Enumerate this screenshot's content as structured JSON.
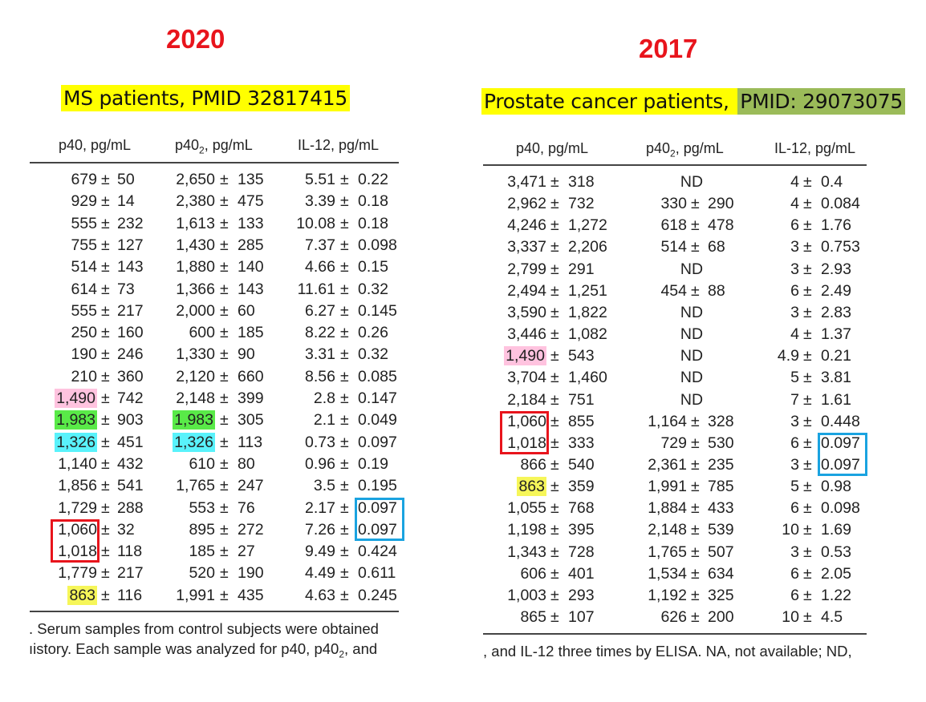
{
  "left": {
    "year": "2020",
    "label": "MS patients, PMID 32817415",
    "headers": {
      "p40": "p40, pg/mL",
      "p402_main": "p40",
      "p402_sub": "2",
      "p402_rest": ", pg/mL",
      "il12": "IL-12, pg/mL"
    },
    "rows": [
      {
        "p40": [
          "679",
          "50"
        ],
        "p402": [
          "2,650",
          "135"
        ],
        "il12": [
          "5.51",
          "0.22"
        ]
      },
      {
        "p40": [
          "929",
          "14"
        ],
        "p402": [
          "2,380",
          "475"
        ],
        "il12": [
          "3.39",
          "0.18"
        ]
      },
      {
        "p40": [
          "555",
          "232"
        ],
        "p402": [
          "1,613",
          "133"
        ],
        "il12": [
          "10.08",
          "0.18"
        ]
      },
      {
        "p40": [
          "755",
          "127"
        ],
        "p402": [
          "1,430",
          "285"
        ],
        "il12": [
          "7.37",
          "0.098"
        ]
      },
      {
        "p40": [
          "514",
          "143"
        ],
        "p402": [
          "1,880",
          "140"
        ],
        "il12": [
          "4.66",
          "0.15"
        ]
      },
      {
        "p40": [
          "614",
          "73"
        ],
        "p402": [
          "1,366",
          "143"
        ],
        "il12": [
          "11.61",
          "0.32"
        ]
      },
      {
        "p40": [
          "555",
          "217"
        ],
        "p402": [
          "2,000",
          "60"
        ],
        "il12": [
          "6.27",
          "0.145"
        ]
      },
      {
        "p40": [
          "250",
          "160"
        ],
        "p402": [
          "600",
          "185"
        ],
        "il12": [
          "8.22",
          "0.26"
        ]
      },
      {
        "p40": [
          "190",
          "246"
        ],
        "p402": [
          "1,330",
          "90"
        ],
        "il12": [
          "3.31",
          "0.32"
        ]
      },
      {
        "p40": [
          "210",
          "360"
        ],
        "p402": [
          "2,120",
          "660"
        ],
        "il12": [
          "8.56",
          "0.085"
        ]
      },
      {
        "p40": [
          "1,490",
          "742"
        ],
        "p402": [
          "2,148",
          "399"
        ],
        "il12": [
          "2.8",
          "0.147"
        ],
        "hl": {
          "p40": "pink"
        }
      },
      {
        "p40": [
          "1,983",
          "903"
        ],
        "p402": [
          "1,983",
          "305"
        ],
        "il12": [
          "2.1",
          "0.049"
        ],
        "hl": {
          "p40": "green",
          "p402": "green"
        }
      },
      {
        "p40": [
          "1,326",
          "451"
        ],
        "p402": [
          "1,326",
          "113"
        ],
        "il12": [
          "0.73",
          "0.097"
        ],
        "hl": {
          "p40": "cyan",
          "p402": "cyan"
        }
      },
      {
        "p40": [
          "1,140",
          "432"
        ],
        "p402": [
          "610",
          "80"
        ],
        "il12": [
          "0.96",
          "0.19"
        ]
      },
      {
        "p40": [
          "1,856",
          "541"
        ],
        "p402": [
          "1,765",
          "247"
        ],
        "il12": [
          "3.5",
          "0.195"
        ]
      },
      {
        "p40": [
          "1,729",
          "288"
        ],
        "p402": [
          "553",
          "76"
        ],
        "il12": [
          "2.17",
          "0.097"
        ]
      },
      {
        "p40": [
          "1,060",
          "32"
        ],
        "p402": [
          "895",
          "272"
        ],
        "il12": [
          "7.26",
          "0.097"
        ]
      },
      {
        "p40": [
          "1,018",
          "118"
        ],
        "p402": [
          "185",
          "27"
        ],
        "il12": [
          "9.49",
          "0.424"
        ]
      },
      {
        "p40": [
          "1,779",
          "217"
        ],
        "p402": [
          "520",
          "190"
        ],
        "il12": [
          "4.49",
          "0.611"
        ]
      },
      {
        "p40": [
          "863",
          "116"
        ],
        "p402": [
          "1,991",
          "435"
        ],
        "il12": [
          "4.63",
          "0.245"
        ],
        "hl": {
          "p40": "yellow"
        }
      }
    ],
    "boxes": [
      {
        "col": "p40",
        "part": "value",
        "rows": [
          16,
          17
        ],
        "color": "#e8141c"
      },
      {
        "col": "il12",
        "part": "sd",
        "rows": [
          15,
          16
        ],
        "color": "#1aa3e0"
      }
    ],
    "caption1": ". Serum samples from control subjects were obtained",
    "caption2_a": "ıistory. Each sample was analyzed for p40, p40",
    "caption2_sub": "2",
    "caption2_b": ", and"
  },
  "right": {
    "year": "2017",
    "label_a": "Prostate cancer patients, ",
    "label_b": "PMID: 29073075",
    "headers": {
      "p40": "p40, pg/mL",
      "p402_main": "p40",
      "p402_sub": "2",
      "p402_rest": ", pg/mL",
      "il12": "IL-12, pg/mL"
    },
    "rows": [
      {
        "p40": [
          "3,471",
          "318"
        ],
        "p402": "ND",
        "il12": [
          "4",
          "0.4"
        ]
      },
      {
        "p40": [
          "2,962",
          "732"
        ],
        "p402": [
          "330",
          "290"
        ],
        "il12": [
          "4",
          "0.084"
        ]
      },
      {
        "p40": [
          "4,246",
          "1,272"
        ],
        "p402": [
          "618",
          "478"
        ],
        "il12": [
          "6",
          "1.76"
        ]
      },
      {
        "p40": [
          "3,337",
          "2,206"
        ],
        "p402": [
          "514",
          "68"
        ],
        "il12": [
          "3",
          "0.753"
        ]
      },
      {
        "p40": [
          "2,799",
          "291"
        ],
        "p402": "ND",
        "il12": [
          "3",
          "2.93"
        ]
      },
      {
        "p40": [
          "2,494",
          "1,251"
        ],
        "p402": [
          "454",
          "88"
        ],
        "il12": [
          "6",
          "2.49"
        ]
      },
      {
        "p40": [
          "3,590",
          "1,822"
        ],
        "p402": "ND",
        "il12": [
          "3",
          "2.83"
        ]
      },
      {
        "p40": [
          "3,446",
          "1,082"
        ],
        "p402": "ND",
        "il12": [
          "4",
          "1.37"
        ]
      },
      {
        "p40": [
          "1,490",
          "543"
        ],
        "p402": "ND",
        "il12": [
          "4.9",
          "0.21"
        ],
        "hl": {
          "p40": "pink"
        }
      },
      {
        "p40": [
          "3,704",
          "1,460"
        ],
        "p402": "ND",
        "il12": [
          "5",
          "3.81"
        ]
      },
      {
        "p40": [
          "2,184",
          "751"
        ],
        "p402": "ND",
        "il12": [
          "7",
          "1.61"
        ]
      },
      {
        "p40": [
          "1,060",
          "855"
        ],
        "p402": [
          "1,164",
          "328"
        ],
        "il12": [
          "3",
          "0.448"
        ]
      },
      {
        "p40": [
          "1,018",
          "333"
        ],
        "p402": [
          "729",
          "530"
        ],
        "il12": [
          "6",
          "0.097"
        ]
      },
      {
        "p40": [
          "866",
          "540"
        ],
        "p402": [
          "2,361",
          "235"
        ],
        "il12": [
          "3",
          "0.097"
        ]
      },
      {
        "p40": [
          "863",
          "359"
        ],
        "p402": [
          "1,991",
          "785"
        ],
        "il12": [
          "5",
          "0.98"
        ],
        "hl": {
          "p40": "yellow"
        }
      },
      {
        "p40": [
          "1,055",
          "768"
        ],
        "p402": [
          "1,884",
          "433"
        ],
        "il12": [
          "6",
          "0.098"
        ]
      },
      {
        "p40": [
          "1,198",
          "395"
        ],
        "p402": [
          "2,148",
          "539"
        ],
        "il12": [
          "10",
          "1.69"
        ]
      },
      {
        "p40": [
          "1,343",
          "728"
        ],
        "p402": [
          "1,765",
          "507"
        ],
        "il12": [
          "3",
          "0.53"
        ]
      },
      {
        "p40": [
          "606",
          "401"
        ],
        "p402": [
          "1,534",
          "634"
        ],
        "il12": [
          "6",
          "2.05"
        ]
      },
      {
        "p40": [
          "1,003",
          "293"
        ],
        "p402": [
          "1,192",
          "325"
        ],
        "il12": [
          "6",
          "1.22"
        ]
      },
      {
        "p40": [
          "865",
          "107"
        ],
        "p402": [
          "626",
          "200"
        ],
        "il12": [
          "10",
          "4.5"
        ]
      }
    ],
    "boxes": [
      {
        "col": "p40",
        "part": "value",
        "rows": [
          11,
          12
        ],
        "color": "#e8141c"
      },
      {
        "col": "il12",
        "part": "sd",
        "rows": [
          12,
          13
        ],
        "color": "#1aa3e0"
      }
    ],
    "caption": ", and IL-12 three times by ELISA. NA, not available; ND,"
  },
  "pm_symbol": "±"
}
